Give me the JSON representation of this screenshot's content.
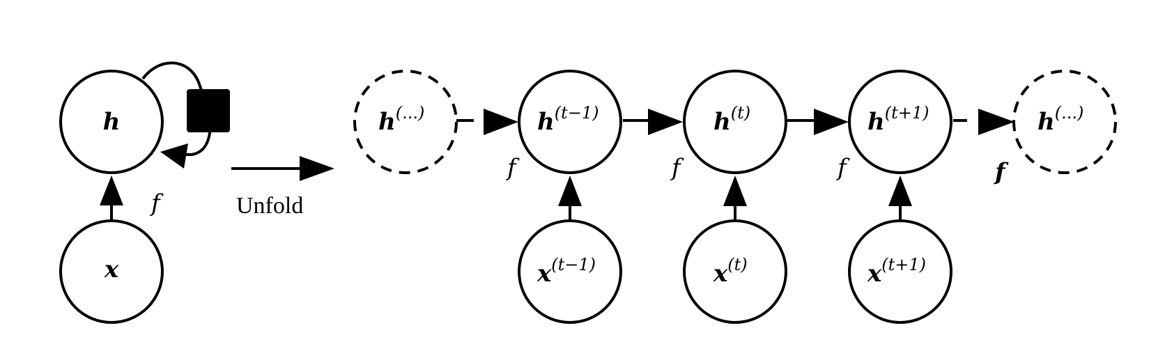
{
  "folded": {
    "hidden": {
      "symbol": "h",
      "superscript": ""
    },
    "input": {
      "symbol": "x",
      "superscript": ""
    },
    "function_label": "f"
  },
  "unfold_label": "Unfold",
  "unrolled": {
    "hidden": [
      {
        "symbol": "h",
        "superscript": "(...)",
        "dashed": true
      },
      {
        "symbol": "h",
        "superscript": "(t−1)",
        "dashed": false
      },
      {
        "symbol": "h",
        "superscript": "(t)",
        "dashed": false
      },
      {
        "symbol": "h",
        "superscript": "(t+1)",
        "dashed": false
      },
      {
        "symbol": "h",
        "superscript": "(...)",
        "dashed": true
      }
    ],
    "inputs": [
      {
        "symbol": "x",
        "superscript": "(t−1)"
      },
      {
        "symbol": "x",
        "superscript": "(t)"
      },
      {
        "symbol": "x",
        "superscript": "(t+1)"
      }
    ],
    "function_labels": [
      "f",
      "f",
      "f",
      "f"
    ]
  }
}
